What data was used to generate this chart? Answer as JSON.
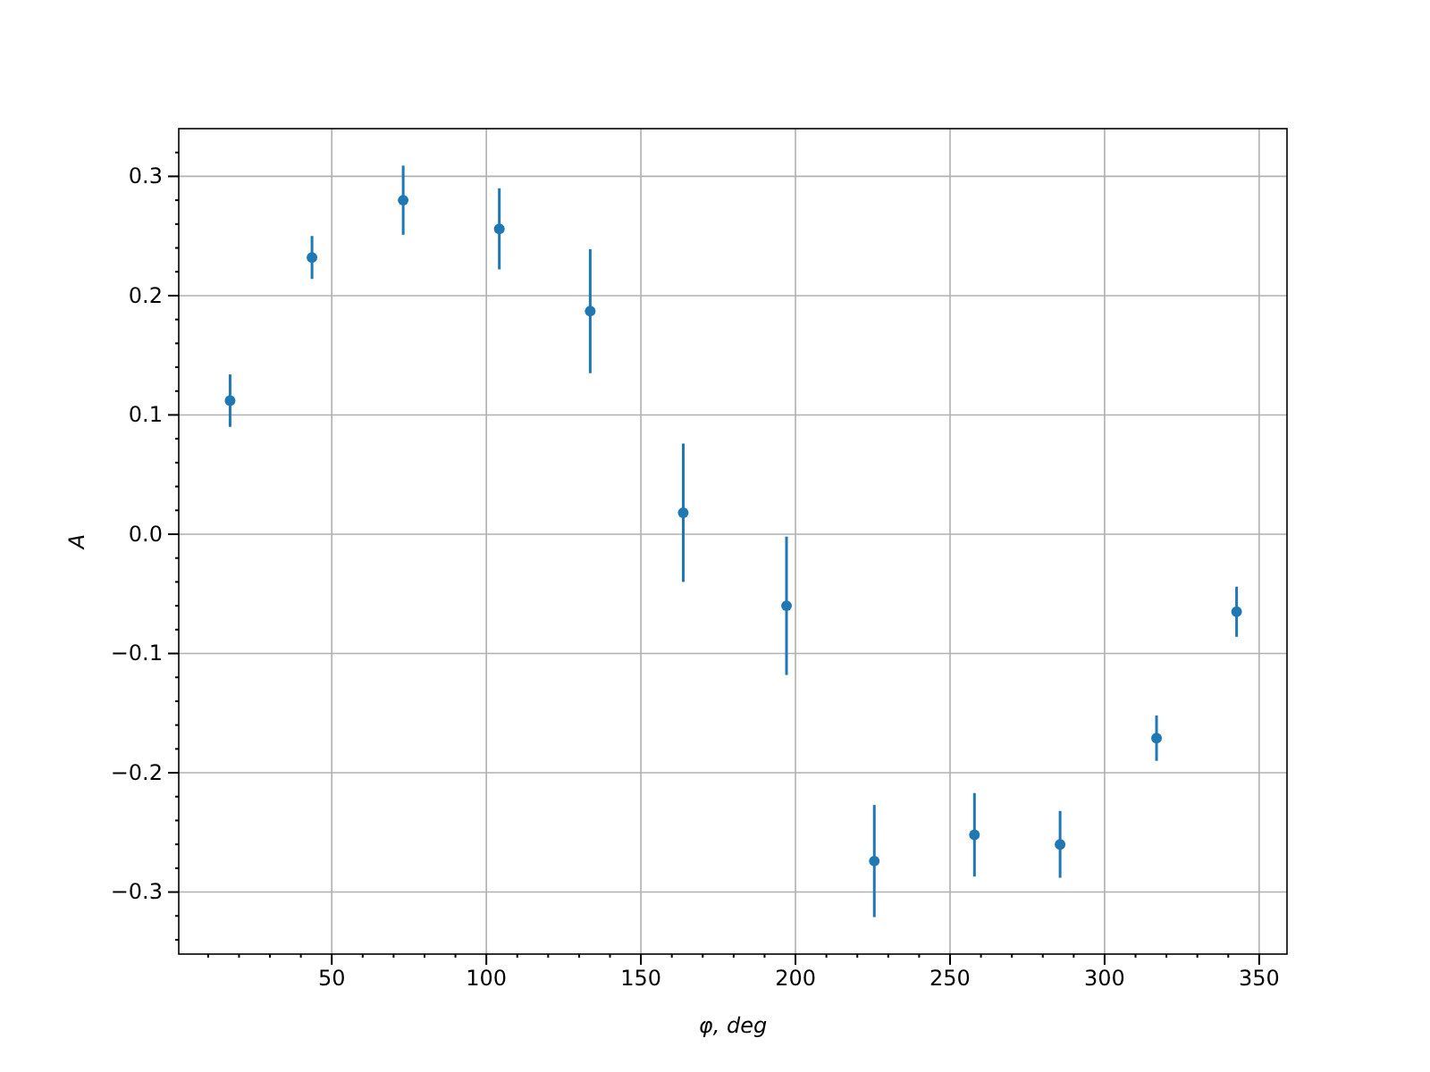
{
  "chart_data": {
    "type": "scatter",
    "xlabel": "φ, deg",
    "ylabel": "A",
    "x": [
      17.1,
      43.6,
      73.1,
      104.2,
      133.6,
      163.7,
      197.1,
      225.5,
      257.9,
      285.6,
      316.8,
      342.7
    ],
    "series": [
      {
        "color": "#1f77b4",
        "values": [
          0.112,
          0.232,
          0.28,
          0.256,
          0.187,
          0.018,
          -0.06,
          -0.274,
          -0.252,
          -0.26,
          -0.171,
          -0.065
        ],
        "errors": [
          0.022,
          0.018,
          0.029,
          0.034,
          0.052,
          0.058,
          0.058,
          0.047,
          0.035,
          0.028,
          0.019,
          0.021
        ]
      }
    ],
    "xlim": [
      0.5,
      359
    ],
    "ylim": [
      -0.352,
      0.34
    ],
    "xticks": [
      {
        "value": 10,
        "label": null
      },
      {
        "value": 20,
        "label": null
      },
      {
        "value": 30,
        "label": null
      },
      {
        "value": 40,
        "label": null
      },
      50,
      {
        "value": 60,
        "label": null
      },
      {
        "value": 70,
        "label": null
      },
      {
        "value": 80,
        "label": null
      },
      {
        "value": 90,
        "label": null
      },
      100,
      {
        "value": 110,
        "label": null
      },
      {
        "value": 120,
        "label": null
      },
      {
        "value": 130,
        "label": null
      },
      {
        "value": 140,
        "label": null
      },
      150,
      {
        "value": 160,
        "label": null
      },
      {
        "value": 170,
        "label": null
      },
      {
        "value": 180,
        "label": null
      },
      {
        "value": 190,
        "label": null
      },
      200,
      {
        "value": 210,
        "label": null
      },
      {
        "value": 220,
        "label": null
      },
      {
        "value": 230,
        "label": null
      },
      {
        "value": 240,
        "label": null
      },
      250,
      {
        "value": 260,
        "label": null
      },
      {
        "value": 270,
        "label": null
      },
      {
        "value": 280,
        "label": null
      },
      {
        "value": 290,
        "label": null
      },
      300,
      {
        "value": 310,
        "label": null
      },
      {
        "value": 320,
        "label": null
      },
      {
        "value": 330,
        "label": null
      },
      {
        "value": 340,
        "label": null
      },
      350
    ],
    "yticks": [
      {
        "value": -0.34,
        "label": null
      },
      {
        "value": -0.32,
        "label": null
      },
      {
        "value": -0.3,
        "label": "−0.3"
      },
      {
        "value": -0.28,
        "label": null
      },
      {
        "value": -0.26,
        "label": null
      },
      {
        "value": -0.24,
        "label": null
      },
      {
        "value": -0.22,
        "label": null
      },
      {
        "value": -0.2,
        "label": "−0.2"
      },
      {
        "value": -0.18,
        "label": null
      },
      {
        "value": -0.16,
        "label": null
      },
      {
        "value": -0.14,
        "label": null
      },
      {
        "value": -0.12,
        "label": null
      },
      {
        "value": -0.1,
        "label": "−0.1"
      },
      {
        "value": -0.08,
        "label": null
      },
      {
        "value": -0.06,
        "label": null
      },
      {
        "value": -0.04,
        "label": null
      },
      {
        "value": -0.02,
        "label": null
      },
      {
        "value": 0,
        "label": "0.0"
      },
      {
        "value": 0.02,
        "label": null
      },
      {
        "value": 0.04,
        "label": null
      },
      {
        "value": 0.06,
        "label": null
      },
      {
        "value": 0.08,
        "label": null
      },
      {
        "value": 0.1,
        "label": "0.1"
      },
      {
        "value": 0.12,
        "label": null
      },
      {
        "value": 0.14,
        "label": null
      },
      {
        "value": 0.16,
        "label": null
      },
      {
        "value": 0.18,
        "label": null
      },
      {
        "value": 0.2,
        "label": "0.2"
      },
      {
        "value": 0.22,
        "label": null
      },
      {
        "value": 0.24,
        "label": null
      },
      {
        "value": 0.26,
        "label": null
      },
      {
        "value": 0.28,
        "label": null
      },
      {
        "value": 0.3,
        "label": "0.3"
      },
      {
        "value": 0.32,
        "label": null
      }
    ],
    "grid": true,
    "marker": "circle"
  }
}
